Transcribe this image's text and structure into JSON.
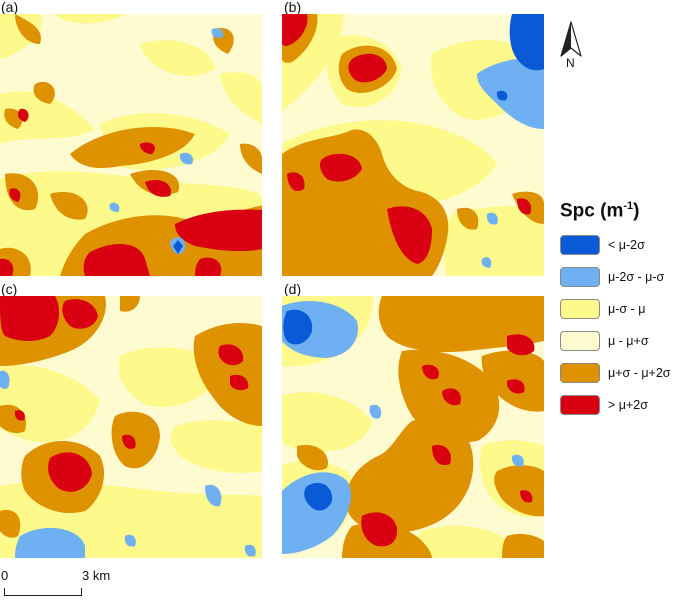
{
  "panels": [
    {
      "id": "a",
      "label": "(a)"
    },
    {
      "id": "b",
      "label": "(b)"
    },
    {
      "id": "c",
      "label": "(c)"
    },
    {
      "id": "d",
      "label": "(d)"
    }
  ],
  "north_arrow": {
    "letter": "N",
    "icon": "north-arrow-icon"
  },
  "legend": {
    "title": "Spc (m",
    "title_sup": "-1",
    "title_end": ")",
    "items": [
      {
        "label": "< μ-2σ",
        "color": "#0a5ad8"
      },
      {
        "label": "μ-2σ - μ-σ",
        "color": "#6fb0f2"
      },
      {
        "label": "μ-σ - μ",
        "color": "#fdf98a"
      },
      {
        "label": "μ - μ+σ",
        "color": "#fffbd0"
      },
      {
        "label": "μ+σ - μ+2σ",
        "color": "#df9200"
      },
      {
        "label": "> μ+2σ",
        "color": "#d90012"
      }
    ]
  },
  "scale": {
    "zero": "0",
    "end": "3 km"
  }
}
